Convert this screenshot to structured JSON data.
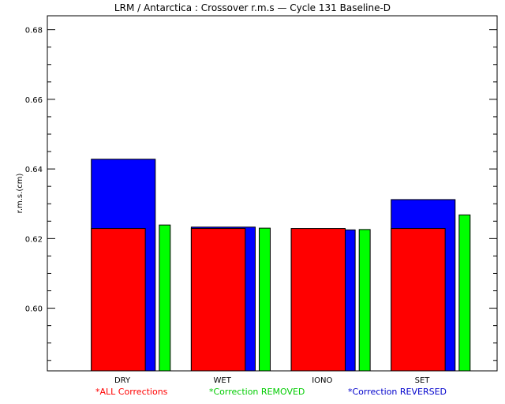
{
  "chart_data": {
    "type": "bar",
    "title": "LRM / Antarctica : Crossover r.m.s — Cycle 131 Baseline-D",
    "xlabel": "",
    "ylabel": "r.m.s.(cm)",
    "categories": [
      "DRY",
      "WET",
      "IONO",
      "SET"
    ],
    "ylim": [
      0.582,
      0.684
    ],
    "yticks": [
      0.6,
      0.62,
      0.64,
      0.66,
      0.68
    ],
    "ytick_labels": [
      "0.60",
      "0.62",
      "0.64",
      "0.66",
      "0.68"
    ],
    "grid": false,
    "legend_position": "bottom",
    "series": [
      {
        "name": "Correction REVERSED",
        "color": "#0000ff",
        "values": [
          0.6428,
          0.6233,
          0.6225,
          0.6312
        ]
      },
      {
        "name": "ALL Corrections",
        "color": "#ff0000",
        "values": [
          0.6229,
          0.6229,
          0.6229,
          0.6229
        ]
      },
      {
        "name": "Correction REMOVED",
        "color": "#00ff00",
        "values": [
          0.6239,
          0.623,
          0.6226,
          0.6268
        ]
      }
    ],
    "legend": [
      {
        "label": "*ALL Corrections",
        "color": "#ff0000"
      },
      {
        "label": "*Correction REMOVED",
        "color": "#00ff00"
      },
      {
        "label": "*Correction REVERSED",
        "color": "#0000ff"
      }
    ]
  }
}
